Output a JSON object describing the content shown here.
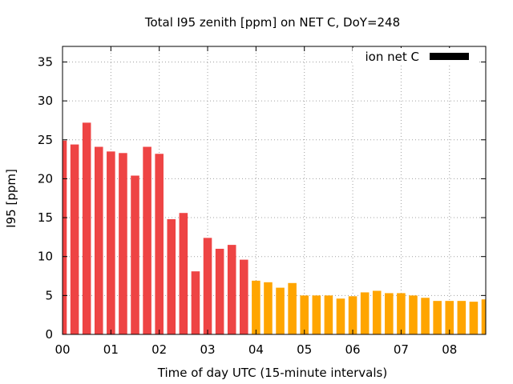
{
  "chart_data": {
    "type": "bar",
    "title": "Total I95 zenith [ppm] on NET C, DoY=248",
    "xlabel": "Time of day UTC (15-minute intervals)",
    "ylabel": "I95 [ppm]",
    "xlim": [
      0,
      8.75
    ],
    "ylim": [
      0,
      37
    ],
    "yticks": [
      0,
      5,
      10,
      15,
      20,
      25,
      30,
      35
    ],
    "xticks": [
      {
        "value": 0,
        "label": "00"
      },
      {
        "value": 1,
        "label": "01"
      },
      {
        "value": 2,
        "label": "02"
      },
      {
        "value": 3,
        "label": "03"
      },
      {
        "value": 4,
        "label": "04"
      },
      {
        "value": 5,
        "label": "05"
      },
      {
        "value": 6,
        "label": "06"
      },
      {
        "value": 7,
        "label": "07"
      },
      {
        "value": 8,
        "label": "08"
      }
    ],
    "grid": true,
    "legend": {
      "label": "ion net C",
      "color": "#000000",
      "position": "top-right"
    },
    "bar_colors": {
      "high": "#ee4444",
      "low": "#ffa500"
    },
    "x": [
      0,
      0.25,
      0.5,
      0.75,
      1,
      1.25,
      1.5,
      1.75,
      2,
      2.25,
      2.5,
      2.75,
      3,
      3.25,
      3.5,
      3.75,
      4,
      4.25,
      4.5,
      4.75,
      5,
      5.25,
      5.5,
      5.75,
      6,
      6.25,
      6.5,
      6.75,
      7,
      7.25,
      7.5,
      7.75,
      8,
      8.25,
      8.5,
      8.75
    ],
    "values": [
      24.9,
      24.4,
      27.2,
      24.1,
      23.5,
      23.3,
      20.4,
      24.1,
      23.2,
      14.8,
      15.6,
      8.1,
      12.4,
      11.0,
      11.5,
      9.6,
      6.9,
      6.7,
      6.0,
      6.6,
      5.0,
      5.0,
      5.0,
      4.6,
      4.9,
      5.4,
      5.6,
      5.3,
      5.3,
      5.0,
      4.7,
      4.3,
      4.3,
      4.3,
      4.2,
      4.5
    ],
    "categories": [
      "high",
      "high",
      "high",
      "high",
      "high",
      "high",
      "high",
      "high",
      "high",
      "high",
      "high",
      "high",
      "high",
      "high",
      "high",
      "high",
      "low",
      "low",
      "low",
      "low",
      "low",
      "low",
      "low",
      "low",
      "low",
      "low",
      "low",
      "low",
      "low",
      "low",
      "low",
      "low",
      "low",
      "low",
      "low",
      "low"
    ]
  }
}
